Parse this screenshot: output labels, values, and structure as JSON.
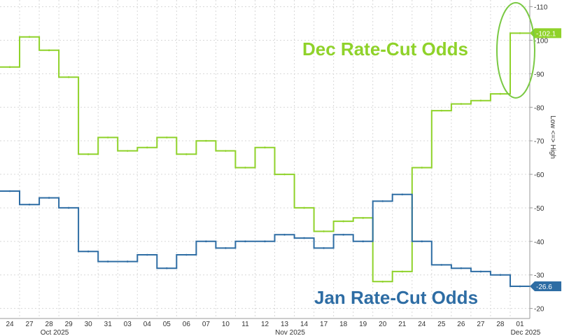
{
  "chart_data": {
    "type": "line",
    "title": "",
    "ylabel": "Low <=> High",
    "ylim": [
      17,
      112
    ],
    "yticks": [
      20,
      30,
      40,
      50,
      60,
      70,
      80,
      90,
      100,
      110
    ],
    "x": [
      "24",
      "27",
      "28",
      "29",
      "30",
      "31",
      "03",
      "04",
      "05",
      "06",
      "07",
      "10",
      "11",
      "12",
      "13",
      "14",
      "17",
      "18",
      "19",
      "20",
      "21",
      "24",
      "25",
      "26",
      "27",
      "28",
      "01"
    ],
    "month_labels": [
      {
        "label": "Oct 2025",
        "at": "28"
      },
      {
        "label": "Nov 2025",
        "at": "13"
      },
      {
        "label": "Dec 2025",
        "at": "01"
      }
    ],
    "series": [
      {
        "name": "Dec Rate-Cut Odds",
        "color": "#8fd22a",
        "last_label": "102.1",
        "values": [
          92,
          101,
          97,
          89,
          66,
          71,
          67,
          68,
          71,
          66,
          70,
          67,
          62,
          68,
          60,
          50,
          43,
          46,
          47,
          28,
          31,
          62,
          79,
          81,
          82,
          84,
          102.1
        ]
      },
      {
        "name": "Jan Rate-Cut Odds",
        "color": "#2e6da4",
        "last_label": "26.6",
        "values": [
          55,
          51,
          53,
          50,
          37,
          34,
          34,
          36,
          32,
          36,
          40,
          38,
          40,
          40,
          42,
          41,
          38,
          42,
          40,
          52,
          54,
          40,
          33,
          32,
          31,
          30,
          26.6
        ]
      }
    ],
    "annotations": {
      "dec_label": "Dec Rate-Cut Odds",
      "jan_label": "Jan Rate-Cut Odds"
    },
    "highlight_color": "#7ac943"
  }
}
